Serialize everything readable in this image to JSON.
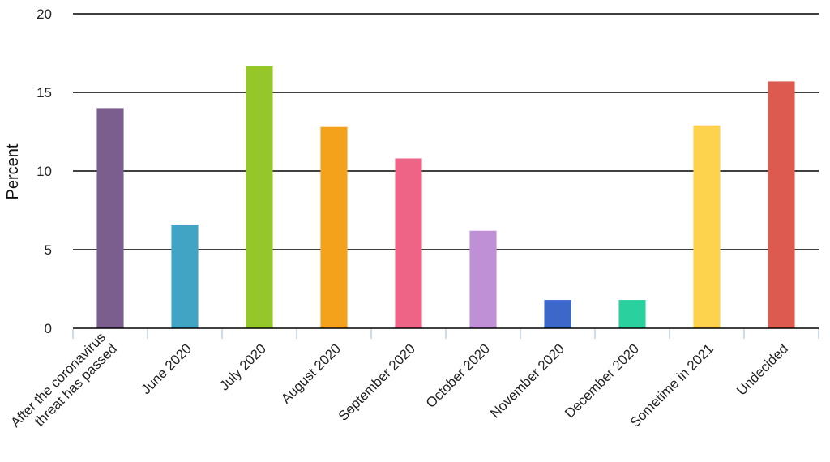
{
  "chart_data": {
    "type": "bar",
    "title": "",
    "xlabel": "",
    "ylabel": "Percent",
    "ylim": [
      0,
      20
    ],
    "yticks": [
      0,
      5,
      10,
      15,
      20
    ],
    "grid": true,
    "categories": [
      "After the coronavirus threat has passed",
      "June 2020",
      "July 2020",
      "August 2020",
      "September 2020",
      "October 2020",
      "November 2020",
      "December 2020",
      "Sometime in 2021",
      "Undecided"
    ],
    "category_lines": [
      [
        "After the coronavirus",
        "threat has passed"
      ],
      [
        "June 2020"
      ],
      [
        "July 2020"
      ],
      [
        "August 2020"
      ],
      [
        "September 2020"
      ],
      [
        "October 2020"
      ],
      [
        "November 2020"
      ],
      [
        "December 2020"
      ],
      [
        "Sometime in 2021"
      ],
      [
        "Undecided"
      ]
    ],
    "values": [
      14.0,
      6.6,
      16.7,
      12.8,
      10.8,
      6.2,
      1.8,
      1.8,
      12.9,
      15.7
    ],
    "colors": [
      "#7b5e8e",
      "#41a4c4",
      "#95c62a",
      "#f4a21c",
      "#ee6487",
      "#bf90d6",
      "#3c69c9",
      "#2ad09e",
      "#fdd24c",
      "#dc5a50"
    ]
  }
}
